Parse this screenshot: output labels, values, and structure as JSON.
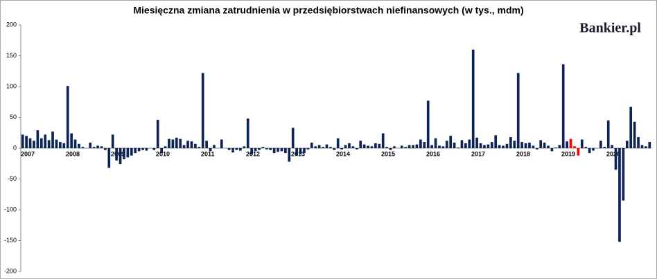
{
  "chart_data": {
    "type": "bar",
    "title": "Miesięczna zmiana zatrudnienia w przedsiębiorstwach niefinansowych (w tys., mdm)",
    "logo": "Bankier.pl",
    "categories": [
      "2007",
      null,
      null,
      null,
      null,
      null,
      null,
      null,
      null,
      null,
      null,
      null,
      "2008",
      null,
      null,
      null,
      null,
      null,
      null,
      null,
      null,
      null,
      null,
      null,
      "2009",
      null,
      null,
      null,
      null,
      null,
      null,
      null,
      null,
      null,
      null,
      null,
      "2010",
      null,
      null,
      null,
      null,
      null,
      null,
      null,
      null,
      null,
      null,
      null,
      "2011",
      null,
      null,
      null,
      null,
      null,
      null,
      null,
      null,
      null,
      null,
      null,
      "2012",
      null,
      null,
      null,
      null,
      null,
      null,
      null,
      null,
      null,
      null,
      null,
      "2013",
      null,
      null,
      null,
      null,
      null,
      null,
      null,
      null,
      null,
      null,
      null,
      "2014",
      null,
      null,
      null,
      null,
      null,
      null,
      null,
      null,
      null,
      null,
      null,
      "2015",
      null,
      null,
      null,
      null,
      null,
      null,
      null,
      null,
      null,
      null,
      null,
      "2016",
      null,
      null,
      null,
      null,
      null,
      null,
      null,
      null,
      null,
      null,
      null,
      "2017",
      null,
      null,
      null,
      null,
      null,
      null,
      null,
      null,
      null,
      null,
      null,
      "2018",
      null,
      null,
      null,
      null,
      null,
      null,
      null,
      null,
      null,
      null,
      null,
      "2019",
      null,
      null,
      null,
      null,
      null,
      null,
      null,
      null,
      null,
      null,
      null,
      "2020",
      null,
      null,
      null,
      null,
      null,
      null,
      null,
      null,
      null,
      null,
      null
    ],
    "values": [
      22,
      20,
      16,
      12,
      29,
      16,
      22,
      13,
      27,
      14,
      10,
      8,
      101,
      24,
      14,
      7,
      2,
      0,
      9,
      2,
      4,
      3,
      -3,
      -32,
      22,
      -20,
      -26,
      -18,
      -15,
      -12,
      -8,
      -5,
      -3,
      -4,
      0,
      -3,
      46,
      -8,
      3,
      15,
      14,
      17,
      15,
      5,
      12,
      11,
      7,
      2,
      122,
      12,
      -5,
      5,
      0,
      14,
      0,
      -3,
      -7,
      -3,
      -4,
      3,
      48,
      -10,
      -5,
      -3,
      2,
      -2,
      -3,
      -8,
      -6,
      -5,
      -8,
      -22,
      33,
      -12,
      -10,
      -8,
      -2,
      9,
      3,
      5,
      2,
      6,
      2,
      -3,
      16,
      -2,
      5,
      8,
      3,
      -2,
      12,
      6,
      4,
      3,
      8,
      7,
      24,
      2,
      -3,
      3,
      0,
      4,
      2,
      5,
      5,
      6,
      14,
      10,
      77,
      5,
      16,
      4,
      3,
      12,
      20,
      9,
      1,
      13,
      8,
      14,
      160,
      17,
      8,
      5,
      6,
      10,
      21,
      5,
      4,
      7,
      18,
      12,
      122,
      10,
      8,
      9,
      4,
      -2,
      13,
      9,
      4,
      -5,
      1,
      5,
      136,
      11,
      15,
      3,
      -12,
      14,
      2,
      -8,
      -4,
      0,
      12,
      2,
      45,
      5,
      -35,
      -152,
      -85,
      12,
      67,
      43,
      18,
      5,
      3,
      10
    ],
    "color": "#0d2456",
    "highlight": {
      "color": "#ff0000",
      "indices": [
        146,
        147,
        148
      ]
    },
    "ylim": [
      -200,
      200
    ],
    "yticks": [
      -200,
      -150,
      -100,
      -50,
      0,
      50,
      100,
      150,
      200
    ],
    "grid": false
  }
}
